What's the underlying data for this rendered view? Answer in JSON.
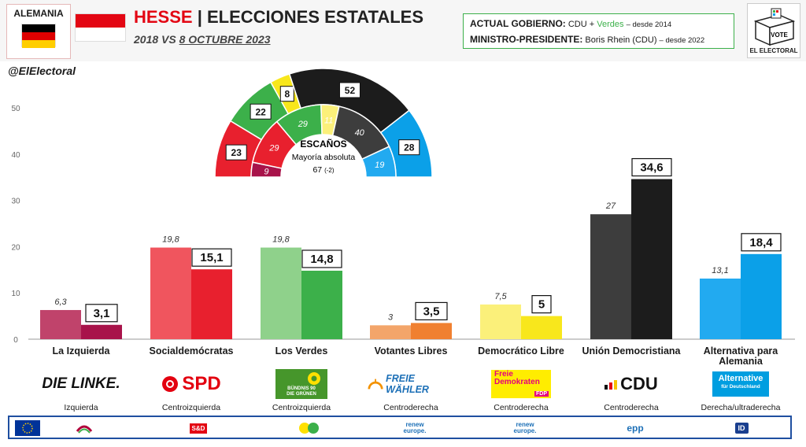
{
  "header": {
    "country": "ALEMANIA",
    "title_region": "HESSE",
    "title_sep": "|",
    "title_rest": "ELECCIONES ESTATALES",
    "subtitle_pre": "2018 VS",
    "subtitle_date": "8 OCTUBRE 2023",
    "gov_label": "ACTUAL GOBIERNO:",
    "gov_party1": "CDU",
    "gov_plus": "+",
    "gov_party2": "Verdes",
    "gov_since": "– desde 2014",
    "mp_label": "MINISTRO-PRESIDENTE:",
    "mp_name": "Boris Rhein (CDU)",
    "mp_since": "– desde 2022",
    "logo_vote": "VOTE",
    "logo_name": "EL ELECTORAL",
    "handle": "@ElElectoral",
    "colors": {
      "de_black": "#000000",
      "de_red": "#dd0000",
      "de_gold": "#ffce00",
      "hesse_red": "#e30613",
      "hesse_white": "#ffffff"
    }
  },
  "chart_data": [
    {
      "type": "bar",
      "categories": [
        "La Izquierda",
        "Socialdemócratas",
        "Los Verdes",
        "Votantes Libres",
        "Democrático Libre",
        "Unión Democristiana",
        "Alternativa para Alemania"
      ],
      "series": [
        {
          "name": "2018",
          "values": [
            6.3,
            19.8,
            19.8,
            3,
            7.5,
            27,
            13.1
          ],
          "labels": [
            "6,3",
            "19,8",
            "19,8",
            "3",
            "7,5",
            "27",
            "13,1"
          ]
        },
        {
          "name": "2023",
          "values": [
            3.1,
            15.1,
            14.8,
            3.5,
            5,
            34.6,
            18.4
          ],
          "labels": [
            "3,1",
            "15,1",
            "14,8",
            "3,5",
            "5",
            "34,6",
            "18,4"
          ]
        }
      ],
      "colors_2018": [
        "#c0436b",
        "#f0555e",
        "#8fd18b",
        "#f3a56a",
        "#fbf07a",
        "#3d3d3d",
        "#22aaf0"
      ],
      "colors_2023": [
        "#a8134a",
        "#e8202e",
        "#3cb04a",
        "#f08030",
        "#f8e71c",
        "#1c1c1c",
        "#0ba0e8"
      ],
      "ylim": [
        0,
        50
      ],
      "yticks": [
        0,
        10,
        20,
        30,
        40,
        50
      ],
      "grid": false
    },
    {
      "type": "pie",
      "title": "ESCAÑOS",
      "subtitle": "Mayoría absoluta",
      "majority": "67",
      "majority_change": "(-2)",
      "outer_ring": {
        "parties": [
          "La Izquierda",
          "Socialdemócratas",
          "Los Verdes",
          "Democrático Libre",
          "Unión Democristiana",
          "Alternativa para Alemania"
        ],
        "seats": [
          0,
          23,
          22,
          8,
          52,
          28
        ],
        "colors": [
          "#a8134a",
          "#e8202e",
          "#3cb04a",
          "#f8e71c",
          "#1c1c1c",
          "#0ba0e8"
        ]
      },
      "inner_ring": {
        "parties": [
          "La Izquierda",
          "Socialdemócratas",
          "Los Verdes",
          "Democrático Libre",
          "Unión Democristiana",
          "Alternativa para Alemania"
        ],
        "seats": [
          9,
          29,
          29,
          11,
          40,
          19
        ],
        "colors": [
          "#a8134a",
          "#e8202e",
          "#3cb04a",
          "#fbf07a",
          "#3d3d3d",
          "#22aaf0"
        ]
      }
    }
  ],
  "parties": [
    {
      "name": "La Izquierda",
      "logo": "DIE LINKE.",
      "ideology": "Izquierda"
    },
    {
      "name": "Socialdemócratas",
      "logo": "SPD",
      "ideology": "Centroizquierda"
    },
    {
      "name": "Los Verdes",
      "logo": "BÜNDNIS 90 DIE GRÜNEN",
      "ideology": "Centroizquierda"
    },
    {
      "name": "Votantes Libres",
      "logo": "FREIE WÄHLER",
      "ideology": "Centroderecha"
    },
    {
      "name": "Democrático Libre",
      "logo_line1": "Freie",
      "logo_line2": "Demokraten",
      "logo_line3": "FDP",
      "ideology": "Centroderecha"
    },
    {
      "name": "Unión Democristiana",
      "logo": "CDU",
      "ideology": "Centroderecha"
    },
    {
      "name": "Alternativa para Alemania",
      "logo_line1": "Alternative",
      "logo_line2": "für Deutschland",
      "ideology": "Derecha/ultraderecha"
    }
  ],
  "eu_groups": [
    {
      "icon": "eu-flag-icon"
    },
    {
      "icon": "left-group-icon"
    },
    {
      "icon": "sd-group-icon",
      "label": "S&D"
    },
    {
      "icon": "greens-group-icon"
    },
    {
      "icon": "renew-group-icon",
      "label": "renew europe."
    },
    {
      "icon": "renew-group-icon",
      "label": "renew europe."
    },
    {
      "icon": "epp-group-icon",
      "label": "epp"
    },
    {
      "icon": "id-group-icon",
      "label": "ID"
    }
  ]
}
